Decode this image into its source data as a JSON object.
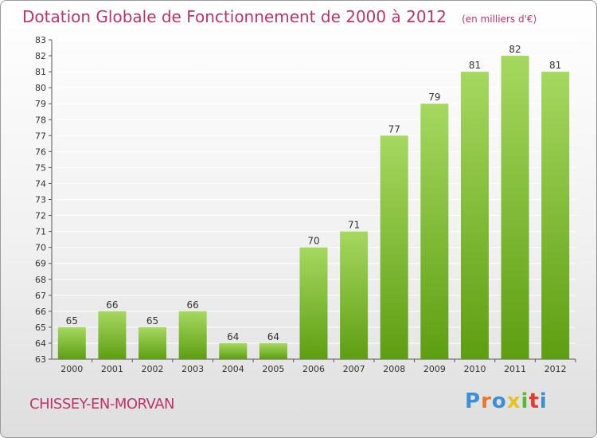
{
  "chart_data": {
    "type": "bar",
    "title": "Dotation Globale de Fonctionnement de 2000 à 2012",
    "subtitle": "(en milliers d'€)",
    "xlabel": "",
    "ylabel": "",
    "categories": [
      "2000",
      "2001",
      "2002",
      "2003",
      "2004",
      "2005",
      "2006",
      "2007",
      "2008",
      "2009",
      "2010",
      "2011",
      "2012"
    ],
    "values": [
      65,
      66,
      65,
      66,
      64,
      64,
      70,
      71,
      77,
      79,
      81,
      82,
      81
    ],
    "ylim": [
      63,
      83
    ],
    "yticks": [
      63,
      64,
      65,
      66,
      67,
      68,
      69,
      70,
      71,
      72,
      73,
      74,
      75,
      76,
      77,
      78,
      79,
      80,
      81,
      82,
      83
    ],
    "grid": true,
    "legend": "none",
    "colors": {
      "bar_top": "#a6d860",
      "bar_bottom": "#5e9e12",
      "title": "#c0336a",
      "grid": "#ffffff"
    }
  },
  "footer": {
    "commune": "CHISSEY-EN-MORVAN",
    "logo_text": "Proxiti",
    "logo_colors": [
      "#3a8fd8",
      "#e8772b",
      "#3a8fd8",
      "#e8c21e",
      "#5cb82e",
      "#e83a2b",
      "#3a8fd8"
    ]
  }
}
